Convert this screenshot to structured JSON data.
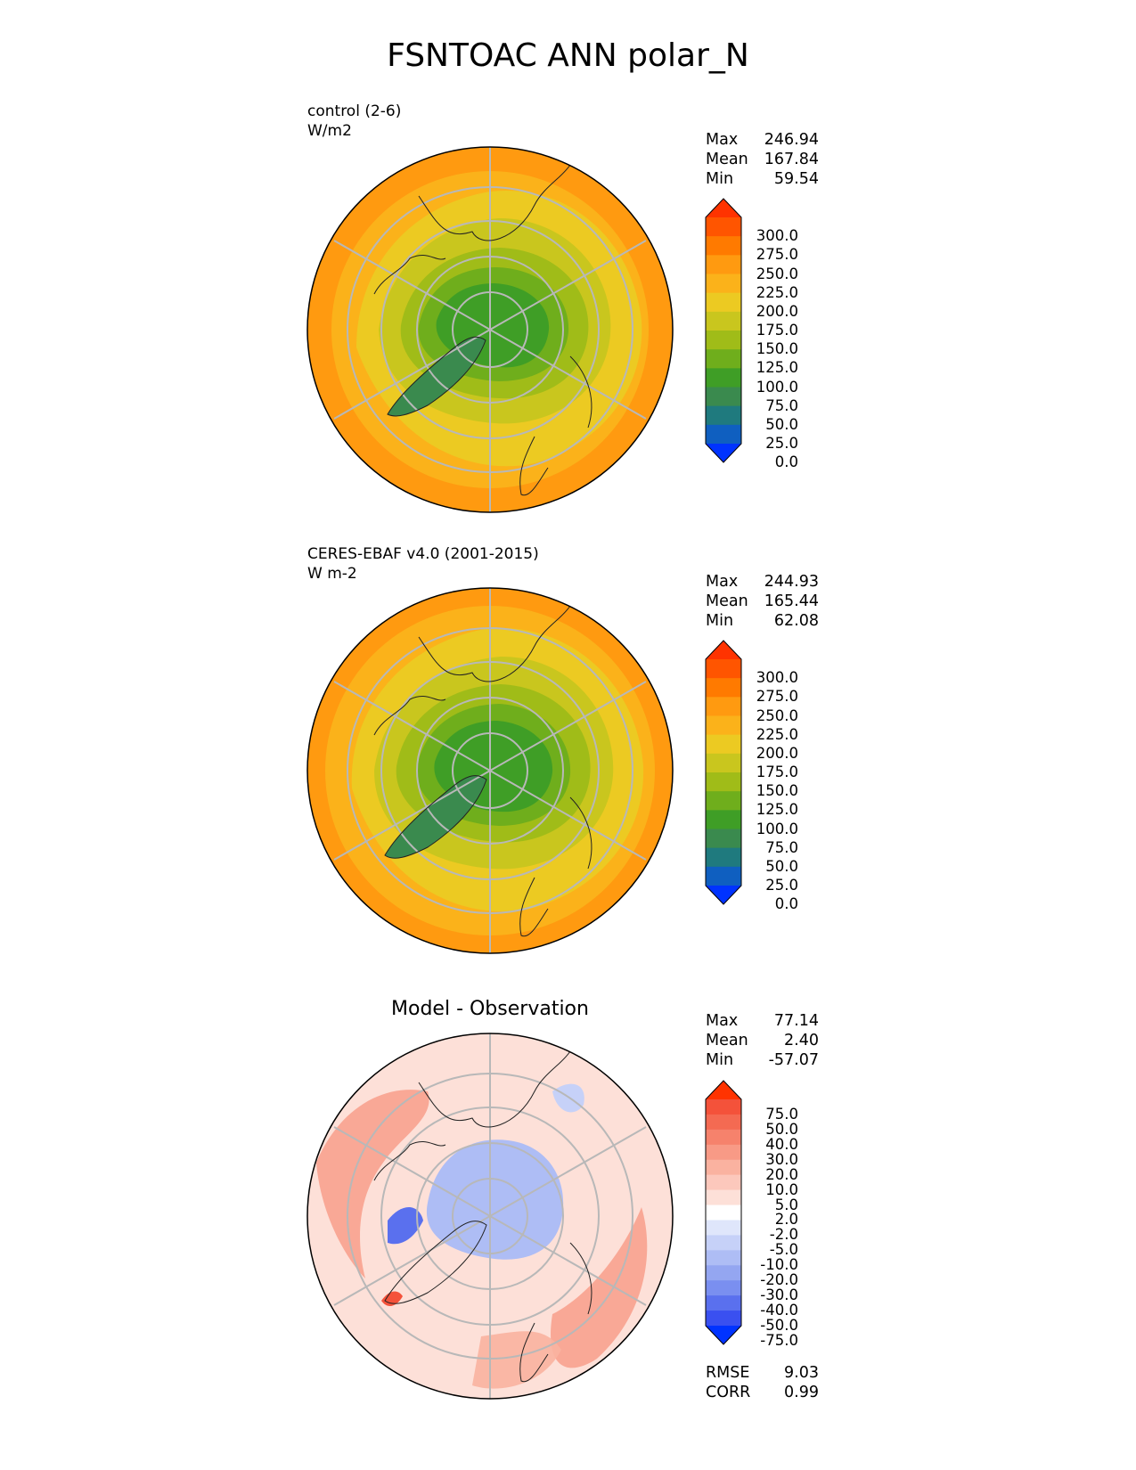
{
  "title": "FSNTOAC ANN polar_N",
  "panels": [
    {
      "label_line1": "control (2-6)",
      "label_line2": "W/m2",
      "stats": [
        {
          "key": "Max",
          "value": "246.94"
        },
        {
          "key": "Mean",
          "value": "167.84"
        },
        {
          "key": "Min",
          "value": "59.54"
        }
      ],
      "colorbar": {
        "ticks": [
          "300.0",
          "275.0",
          "250.0",
          "225.0",
          "200.0",
          "175.0",
          "150.0",
          "125.0",
          "100.0",
          "75.0",
          "50.0",
          "25.0",
          "0.0"
        ],
        "colors": [
          "#ff3300",
          "#ff5500",
          "#ff7a00",
          "#ff9a10",
          "#fbb21a",
          "#ecca22",
          "#c9c61e",
          "#a0bc18",
          "#6fae1c",
          "#3f9e26",
          "#3a8a4e",
          "#1f7a7e",
          "#0f5fc0",
          "#0033ff"
        ]
      }
    },
    {
      "label_line1": "CERES-EBAF v4.0 (2001-2015)",
      "label_line2": "W m-2",
      "stats": [
        {
          "key": "Max",
          "value": "244.93"
        },
        {
          "key": "Mean",
          "value": "165.44"
        },
        {
          "key": "Min",
          "value": "62.08"
        }
      ],
      "colorbar": {
        "ticks": [
          "300.0",
          "275.0",
          "250.0",
          "225.0",
          "200.0",
          "175.0",
          "150.0",
          "125.0",
          "100.0",
          "75.0",
          "50.0",
          "25.0",
          "0.0"
        ],
        "colors": [
          "#ff3300",
          "#ff5500",
          "#ff7a00",
          "#ff9a10",
          "#fbb21a",
          "#ecca22",
          "#c9c61e",
          "#a0bc18",
          "#6fae1c",
          "#3f9e26",
          "#3a8a4e",
          "#1f7a7e",
          "#0f5fc0",
          "#0033ff"
        ]
      }
    },
    {
      "title": "Model - Observation",
      "stats": [
        {
          "key": "Max",
          "value": "77.14"
        },
        {
          "key": "Mean",
          "value": "2.40"
        },
        {
          "key": "Min",
          "value": "-57.07"
        }
      ],
      "metrics": [
        {
          "key": "RMSE",
          "value": "9.03"
        },
        {
          "key": "CORR",
          "value": "0.99"
        }
      ],
      "colorbar": {
        "ticks": [
          "75.0",
          "50.0",
          "40.0",
          "30.0",
          "20.0",
          "10.0",
          "5.0",
          "2.0",
          "-2.0",
          "-5.0",
          "-10.0",
          "-20.0",
          "-30.0",
          "-40.0",
          "-50.0",
          "-75.0"
        ],
        "colors": [
          "#ff3300",
          "#f4523a",
          "#f46a52",
          "#f6826c",
          "#f89a86",
          "#fab2a0",
          "#fcc8bc",
          "#fde0d8",
          "#ffffff",
          "#dfe6fb",
          "#c6d1f8",
          "#aebdf5",
          "#94a6f1",
          "#7a8ff0",
          "#5a70ee",
          "#3a50f0",
          "#0033ff"
        ]
      }
    }
  ]
}
